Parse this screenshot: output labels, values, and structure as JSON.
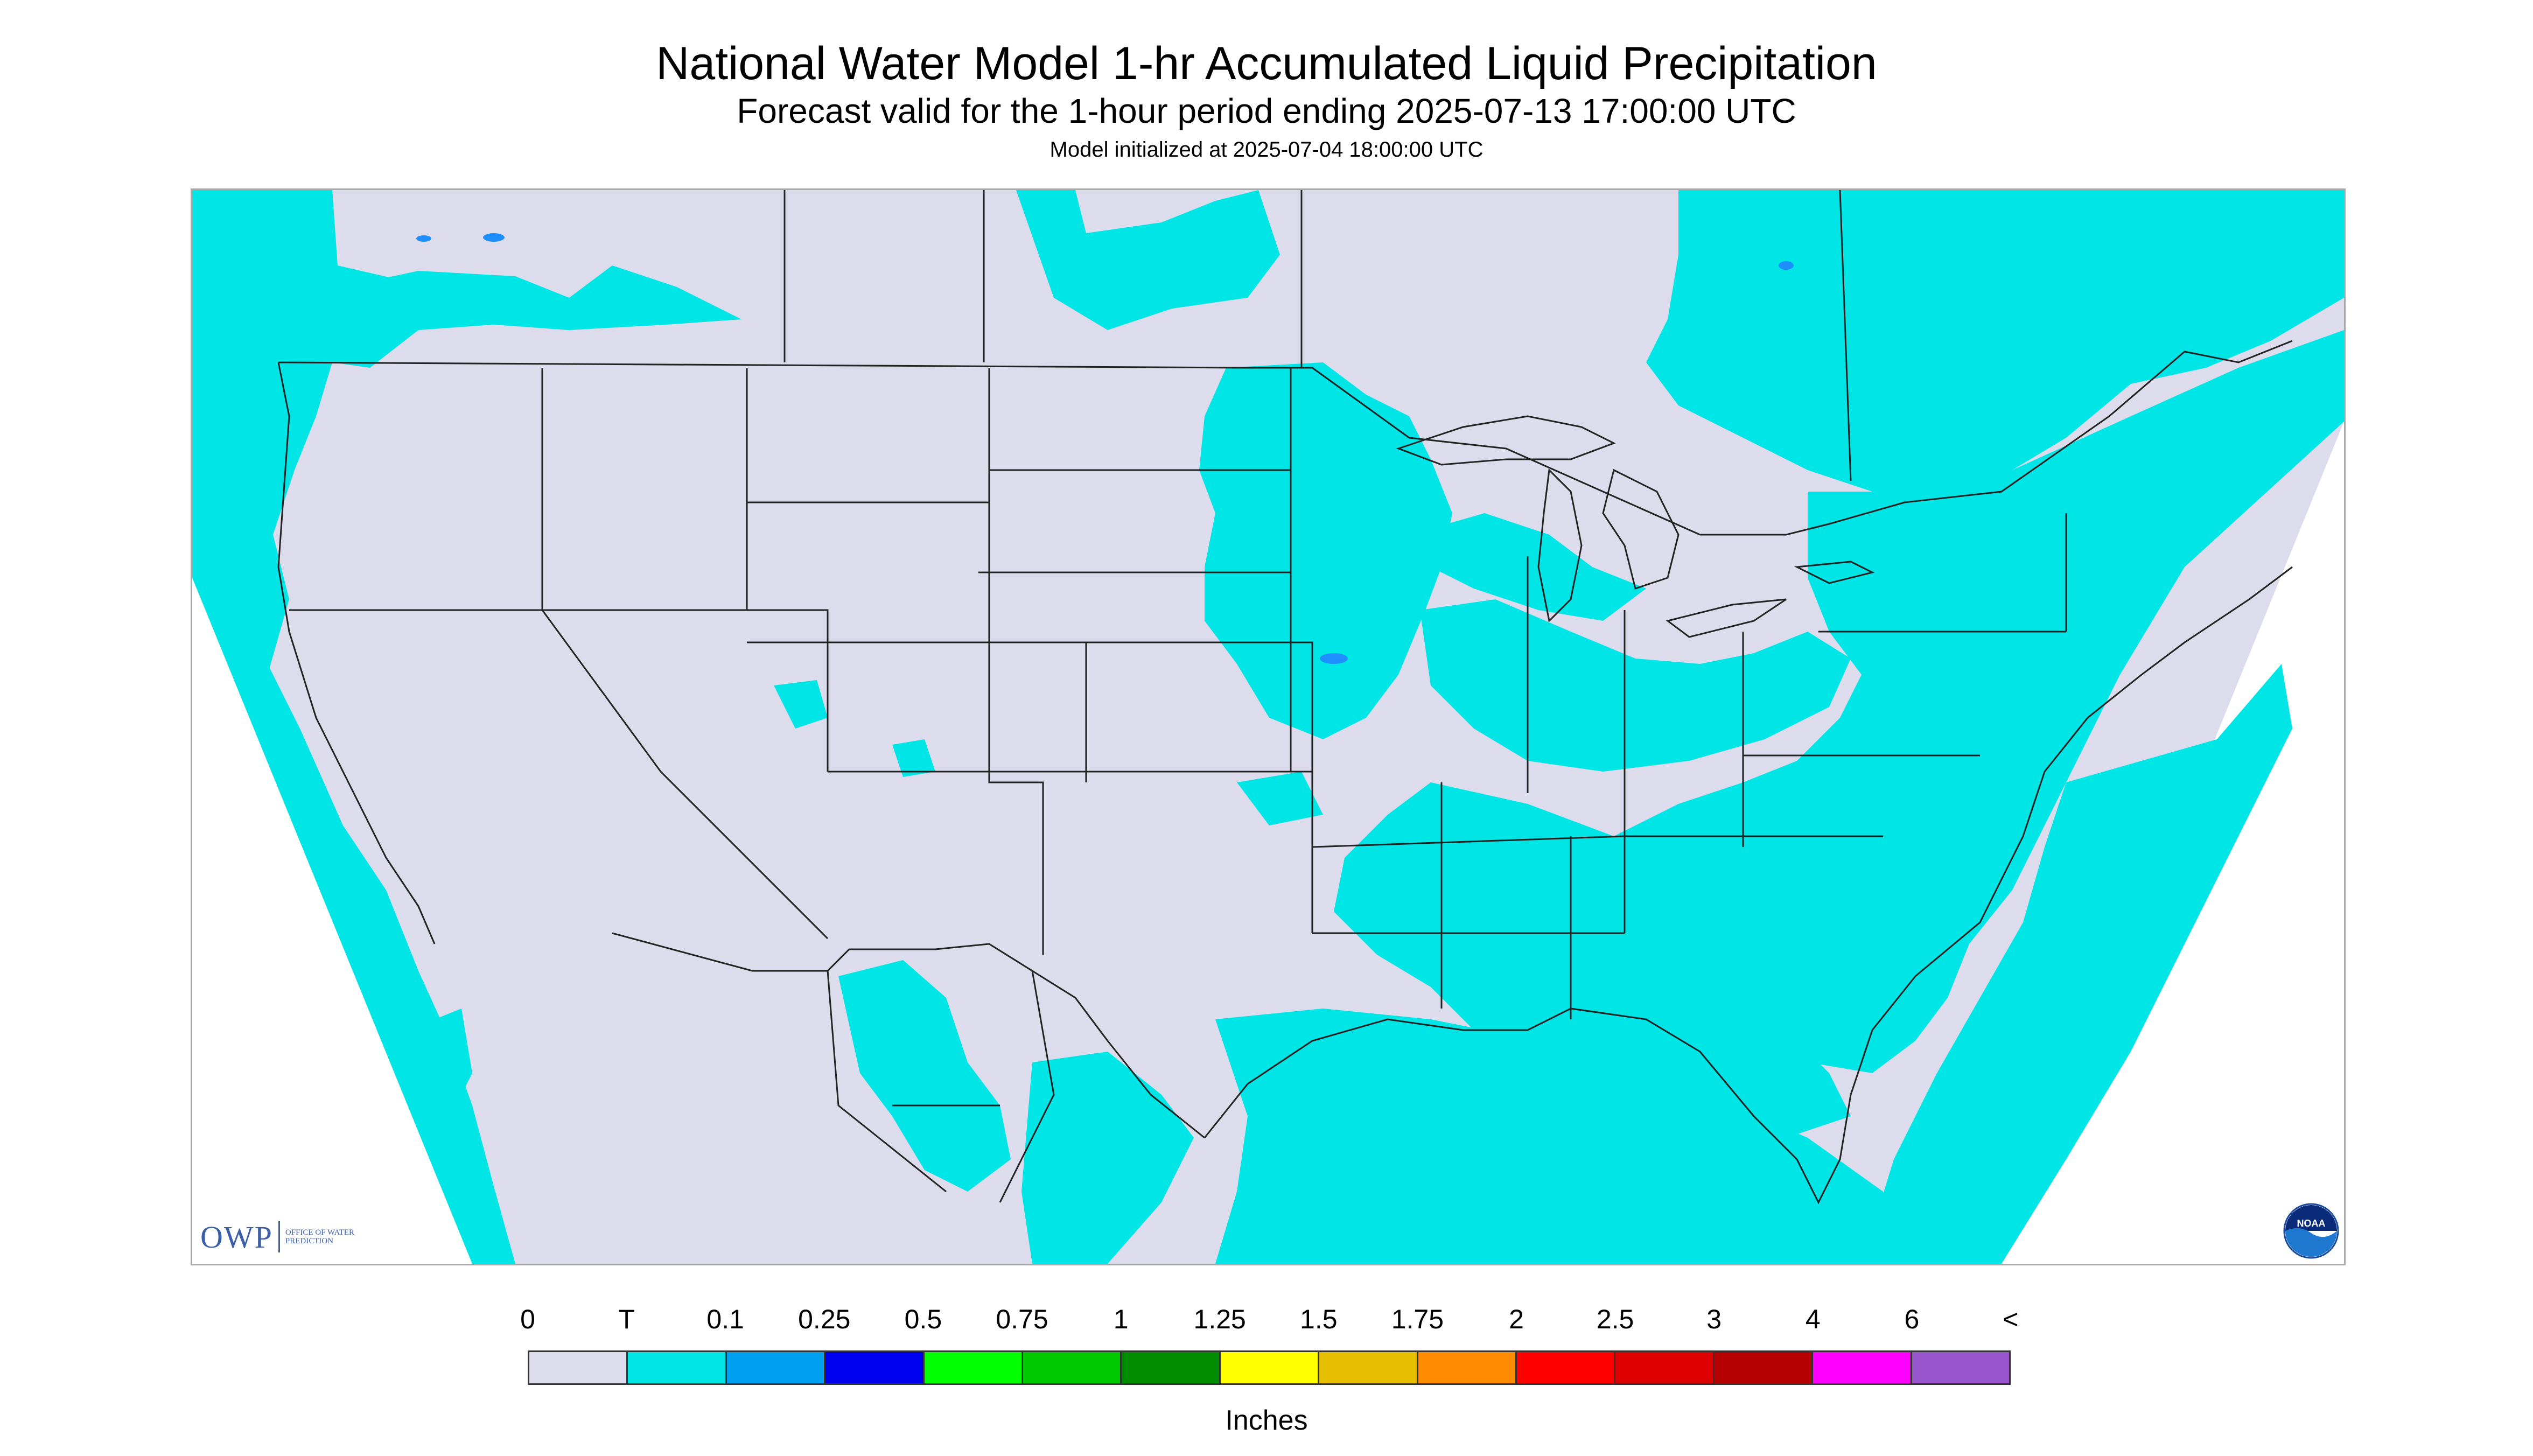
{
  "header": {
    "title": "National Water Model 1-hr Accumulated Liquid Precipitation",
    "subtitle": "Forecast valid for the 1-hour period ending 2025-07-13 17:00:00 UTC",
    "init_line": "Model initialized at 2025-07-04 18:00:00 UTC"
  },
  "map": {
    "background_color": "#dcdcec",
    "outside_color": "#ffffff",
    "precip_trace_color": "#00e5e5",
    "boundary_color": "#222222"
  },
  "logos": {
    "owp_mark": "OWP",
    "owp_text": "OFFICE OF WATER PREDICTION",
    "noaa_text": "NOAA"
  },
  "legend": {
    "labels": [
      "0",
      "T",
      "0.1",
      "0.25",
      "0.5",
      "0.75",
      "1",
      "1.25",
      "1.5",
      "1.75",
      "2",
      "2.5",
      "3",
      "4",
      "6",
      "<"
    ],
    "colors": [
      "#dcdcec",
      "#00e5e5",
      "#00a0f0",
      "#0000f0",
      "#00ff00",
      "#00c800",
      "#008c00",
      "#ffff00",
      "#e6c000",
      "#ff8c00",
      "#ff0000",
      "#dc0000",
      "#b40000",
      "#ff00ff",
      "#9955cc"
    ],
    "units": "Inches"
  }
}
